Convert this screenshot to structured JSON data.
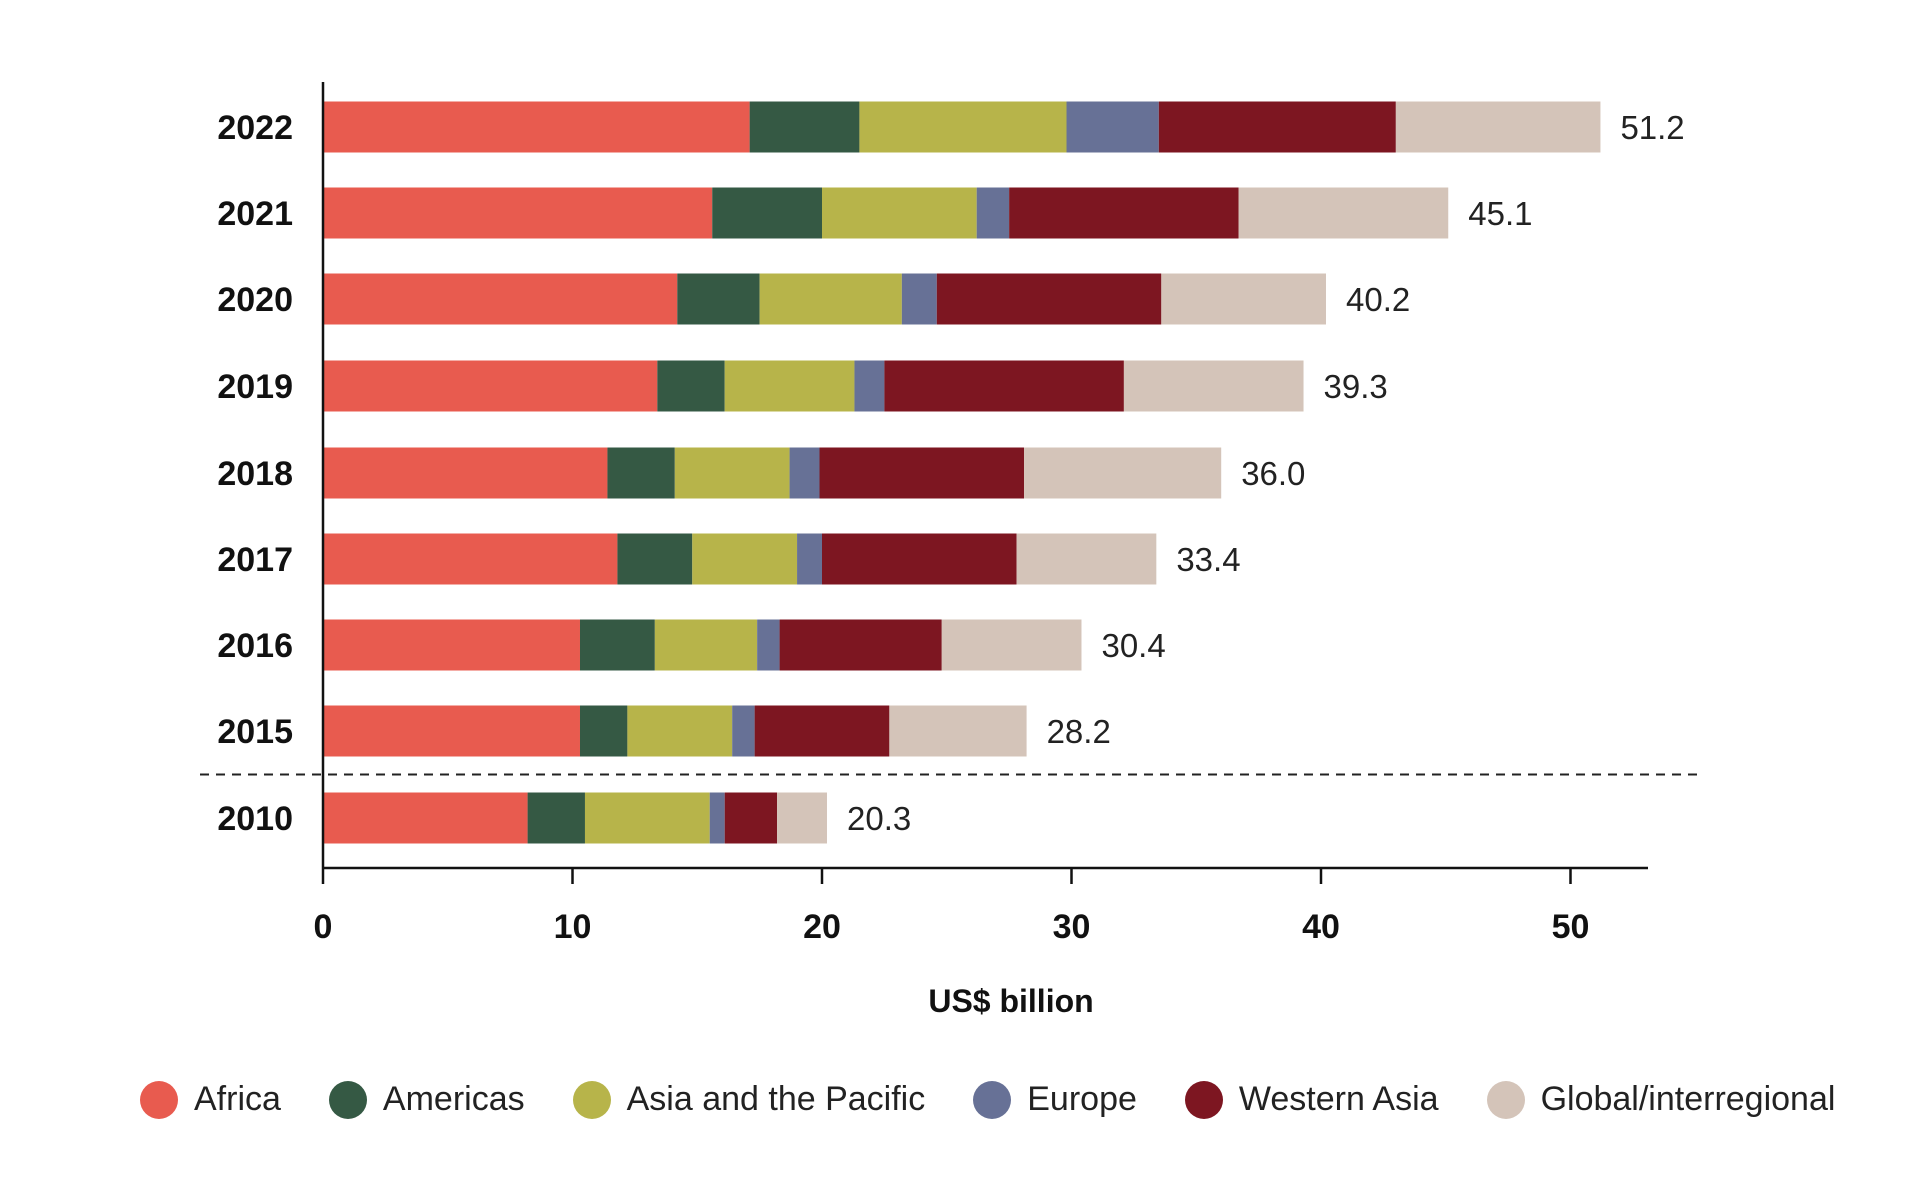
{
  "chart_data": {
    "type": "bar",
    "orientation": "horizontal",
    "stacked": true,
    "categories": [
      "2022",
      "2021",
      "2020",
      "2019",
      "2018",
      "2017",
      "2016",
      "2015",
      "2010"
    ],
    "series": [
      {
        "name": "Africa",
        "color": "#E85B4F",
        "values": [
          17.1,
          15.6,
          14.2,
          13.4,
          11.4,
          11.8,
          10.3,
          10.3,
          8.2
        ]
      },
      {
        "name": "Americas",
        "color": "#355944",
        "values": [
          4.4,
          4.4,
          3.3,
          2.7,
          2.7,
          3.0,
          3.0,
          1.9,
          2.3
        ]
      },
      {
        "name": "Asia and the Pacific",
        "color": "#B7B44A",
        "values": [
          8.3,
          6.2,
          5.7,
          5.2,
          4.6,
          4.2,
          4.1,
          4.2,
          5.0
        ]
      },
      {
        "name": "Europe",
        "color": "#677196",
        "values": [
          3.7,
          1.3,
          1.4,
          1.2,
          1.2,
          1.0,
          0.9,
          0.9,
          0.6
        ]
      },
      {
        "name": "Western Asia",
        "color": "#7D1621",
        "values": [
          9.5,
          9.2,
          9.0,
          9.6,
          8.2,
          7.8,
          6.5,
          5.4,
          2.1
        ]
      },
      {
        "name": "Global/interregional",
        "color": "#D4C4B9",
        "values": [
          8.2,
          8.4,
          6.6,
          7.2,
          7.9,
          5.6,
          5.6,
          5.5,
          2.0
        ]
      }
    ],
    "totals": [
      "51.2",
      "45.1",
      "40.2",
      "39.3",
      "36.0",
      "33.4",
      "30.4",
      "28.2",
      "20.3"
    ],
    "xticks": [
      0,
      10,
      20,
      30,
      40,
      50
    ],
    "xlim": [
      0,
      53.2
    ],
    "xlabel": "US$ billion",
    "ylabel": "",
    "title": "",
    "separator_after_category": "2015",
    "grid": false,
    "legend_position": "bottom"
  }
}
